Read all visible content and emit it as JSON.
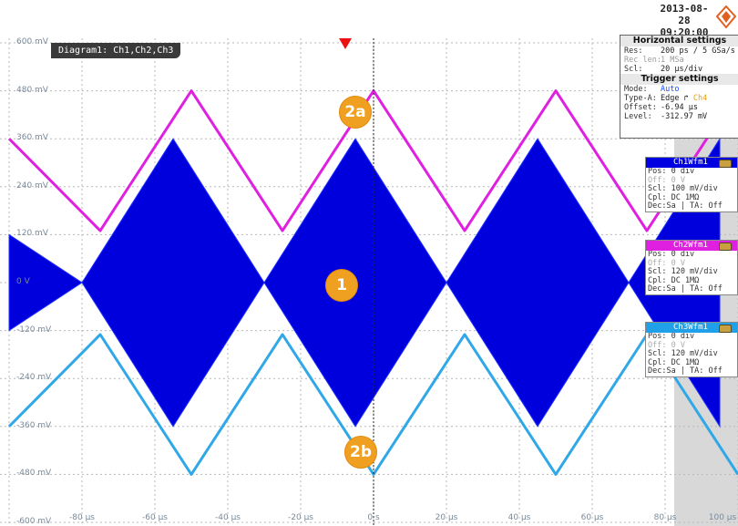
{
  "header": {
    "date": "2013-08-28",
    "time": "09:20:00"
  },
  "diagram": {
    "title": "Diagram1: Ch1,Ch2,Ch3",
    "y_labels": [
      "600 mV",
      "480 mV",
      "360 mV",
      "240 mV",
      "120 mV",
      "0 V",
      "-120 mV",
      "-240 mV",
      "-360 mV",
      "-480 mV",
      "-600 mV"
    ],
    "x_labels": [
      "-80 µs",
      "-60 µs",
      "-40 µs",
      "-20 µs",
      "0 s",
      "20 µs",
      "40 µs",
      "60 µs",
      "80 µs",
      "100 µs"
    ]
  },
  "markers": {
    "m1": "1",
    "m2a": "2a",
    "m2b": "2b"
  },
  "horizontal_settings": {
    "title": "Horizontal settings",
    "res_label": "Res:",
    "res_value": "200 ps / 5 GSa/s",
    "reclen_label": "Rec len:",
    "reclen_value": "1 MSa",
    "scl_label": "Scl:",
    "scl_value": "20 µs/div"
  },
  "trigger_settings": {
    "title": "Trigger settings",
    "mode_label": "Mode:",
    "mode_value": "Auto",
    "type_label": "Type-A:",
    "type_value": "Edge",
    "type_source": "Ch4",
    "offset_label": "Offset:",
    "offset_value": "-6.94 µs",
    "level_label": "Level:",
    "level_value": "-312.97 mV"
  },
  "channels": [
    {
      "name": "Ch1Wfm1",
      "pos": "Pos: 0 div",
      "off": "Off: 0 V",
      "scl": "Scl: 100 mV/div",
      "cpl": "Cpl: DC 1MΩ",
      "dec": "Dec:Sa | TA: Off",
      "color": "#0000e0"
    },
    {
      "name": "Ch2Wfm1",
      "pos": "Pos: 0 div",
      "off": "Off: 0 V",
      "scl": "Scl: 120 mV/div",
      "cpl": "Cpl: DC 1MΩ",
      "dec": "Dec:Sa | TA: Off",
      "color": "#e020e0"
    },
    {
      "name": "Ch3Wfm1",
      "pos": "Pos: 0 div",
      "off": "Off: 0 V",
      "scl": "Scl: 120 mV/div",
      "cpl": "Cpl: DC 1MΩ",
      "dec": "Dec:Sa | TA: Off",
      "color": "#20a0e8"
    }
  ],
  "colors": {
    "ch1": "#0000dd",
    "ch2": "#e020e0",
    "ch3": "#30a8e8",
    "trigger": "#ee1111",
    "marker": "#f0a020"
  },
  "chart_data": {
    "type": "line",
    "x_unit": "µs",
    "y_unit": "mV",
    "xlim": [
      -100,
      100
    ],
    "ylim": [
      -600,
      600
    ],
    "series": [
      {
        "name": "Ch1Wfm1",
        "x": [
          -100,
          -80,
          -55,
          -30,
          -5,
          20,
          45,
          70,
          95
        ],
        "envelope_upper": [
          120,
          0,
          360,
          0,
          360,
          0,
          360,
          0,
          360
        ],
        "envelope_lower": [
          -120,
          0,
          -360,
          0,
          -360,
          0,
          -360,
          0,
          -360
        ]
      },
      {
        "name": "Ch2Wfm1",
        "x": [
          -100,
          -75,
          -50,
          -25,
          0,
          25,
          50,
          75,
          100
        ],
        "values": [
          360,
          130,
          480,
          130,
          480,
          130,
          480,
          130,
          480
        ]
      },
      {
        "name": "Ch3Wfm1",
        "x": [
          -100,
          -75,
          -50,
          -25,
          0,
          25,
          50,
          75,
          100
        ],
        "values": [
          -360,
          -130,
          -480,
          -130,
          -480,
          -130,
          -480,
          -130,
          -480
        ]
      }
    ]
  }
}
